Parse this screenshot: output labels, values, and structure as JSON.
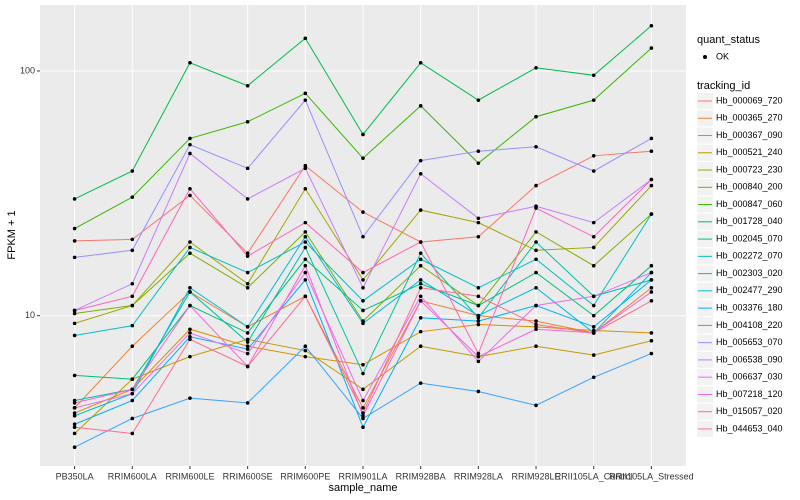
{
  "chart_data": {
    "type": "line",
    "x_label": "sample_name",
    "y_label": "FPKM + 1",
    "log_y": true,
    "grid": true,
    "categories": [
      "PB350LA",
      "RRIM600LA",
      "RRIM600LE",
      "RRIM600SE",
      "RRIM600PE",
      "RRIM901LA",
      "RRIM928BA",
      "RRIM928LA",
      "RRIM928LE",
      "RRII105LA_Control",
      "RRII105LA_Stressed"
    ],
    "ylim": [
      2.43,
      186
    ],
    "yticks": [
      10,
      100
    ],
    "point_legend_title": "quant_status",
    "point_legend_label": "OK",
    "point_color": "#000000",
    "legend_title": "tracking_id",
    "series": [
      {
        "name": "Hb_000069_720",
        "color": "#F8766D",
        "values": [
          20.2,
          20.5,
          31,
          18,
          41,
          26.5,
          20,
          21,
          34,
          45,
          47
        ]
      },
      {
        "name": "Hb_000365_270",
        "color": "#EA8331",
        "values": [
          4.2,
          7.5,
          12.5,
          9.0,
          12,
          4.2,
          11.5,
          10,
          9.5,
          8.5,
          13
        ]
      },
      {
        "name": "Hb_000367_090",
        "color": "#D89000",
        "values": [
          4.0,
          5.0,
          8.8,
          7.5,
          6.8,
          6.3,
          8.6,
          9.2,
          9.0,
          8.7,
          8.5
        ]
      },
      {
        "name": "Hb_000521_240",
        "color": "#C09B00",
        "values": [
          3.3,
          5.5,
          6.8,
          8.0,
          7.2,
          5.0,
          7.5,
          6.8,
          7.5,
          6.9,
          7.9
        ]
      },
      {
        "name": "Hb_000723_230",
        "color": "#A3A500",
        "values": [
          9.3,
          11,
          20,
          13.5,
          33,
          14,
          27,
          24,
          18.5,
          19,
          34
        ]
      },
      {
        "name": "Hb_000840_200",
        "color": "#7CAE00",
        "values": [
          10.2,
          11,
          18,
          13,
          22,
          9.5,
          16,
          11,
          22,
          16,
          26
        ]
      },
      {
        "name": "Hb_000847_060",
        "color": "#39B600",
        "values": [
          22.7,
          30.5,
          53,
          62,
          81,
          44,
          72,
          42,
          65,
          76,
          124
        ]
      },
      {
        "name": "Hb_001728_040",
        "color": "#00BB4E",
        "values": [
          30,
          39,
          108,
          87,
          136,
          55,
          108,
          76,
          103,
          96,
          153
        ]
      },
      {
        "name": "Hb_002045_070",
        "color": "#00BF7D",
        "values": [
          5.7,
          5.5,
          11,
          8.5,
          17,
          10.5,
          13.5,
          11,
          15,
          10,
          16
        ]
      },
      {
        "name": "Hb_002272_070",
        "color": "#00C1A3",
        "values": [
          4.5,
          5.0,
          12.5,
          7.8,
          19,
          5.8,
          18,
          9.8,
          20,
          12,
          14
        ]
      },
      {
        "name": "Hb_002303_020",
        "color": "#00BFC4",
        "values": [
          8.3,
          9.1,
          19,
          15,
          20,
          11.5,
          17,
          13,
          17,
          11,
          26
        ]
      },
      {
        "name": "Hb_002477_290",
        "color": "#00BAE0",
        "values": [
          3.9,
          4.8,
          13,
          9,
          21,
          9.3,
          14,
          10,
          13,
          8.5,
          15
        ]
      },
      {
        "name": "Hb_003376_180",
        "color": "#00B0F6",
        "values": [
          3.6,
          4.5,
          8.2,
          7.3,
          14,
          3.5,
          9.8,
          9.5,
          11,
          9,
          14
        ]
      },
      {
        "name": "Hb_004108_220",
        "color": "#35A2FF",
        "values": [
          2.9,
          3.8,
          4.6,
          4.4,
          7.5,
          3.8,
          5.3,
          4.9,
          4.3,
          5.6,
          7
        ]
      },
      {
        "name": "Hb_005653_070",
        "color": "#9590FF",
        "values": [
          17.3,
          18.5,
          50,
          40,
          76,
          21,
          43,
          47,
          49,
          39,
          53
        ]
      },
      {
        "name": "Hb_006538_090",
        "color": "#C77CFF",
        "values": [
          10.5,
          13.5,
          46,
          30,
          40,
          13,
          38,
          25,
          28,
          24,
          36
        ]
      },
      {
        "name": "Hb_006637_030",
        "color": "#E76BF3",
        "values": [
          4.2,
          4.8,
          8.5,
          7.0,
          15,
          4.5,
          12,
          6.5,
          11,
          12,
          15
        ]
      },
      {
        "name": "Hb_007218_120",
        "color": "#FA62DB",
        "values": [
          4.4,
          5,
          11,
          6.2,
          16,
          3.9,
          11.5,
          6.8,
          8.8,
          8.5,
          12.5
        ]
      },
      {
        "name": "Hb_015057_020",
        "color": "#FF62BC",
        "values": [
          10.5,
          12,
          33,
          17.5,
          24,
          15,
          20,
          7,
          27.5,
          21,
          36
        ]
      },
      {
        "name": "Hb_044653_040",
        "color": "#FF6C91",
        "values": [
          3.5,
          3.3,
          8,
          6.2,
          12,
          4,
          13,
          12,
          9.2,
          8.5,
          11.5
        ]
      }
    ]
  }
}
